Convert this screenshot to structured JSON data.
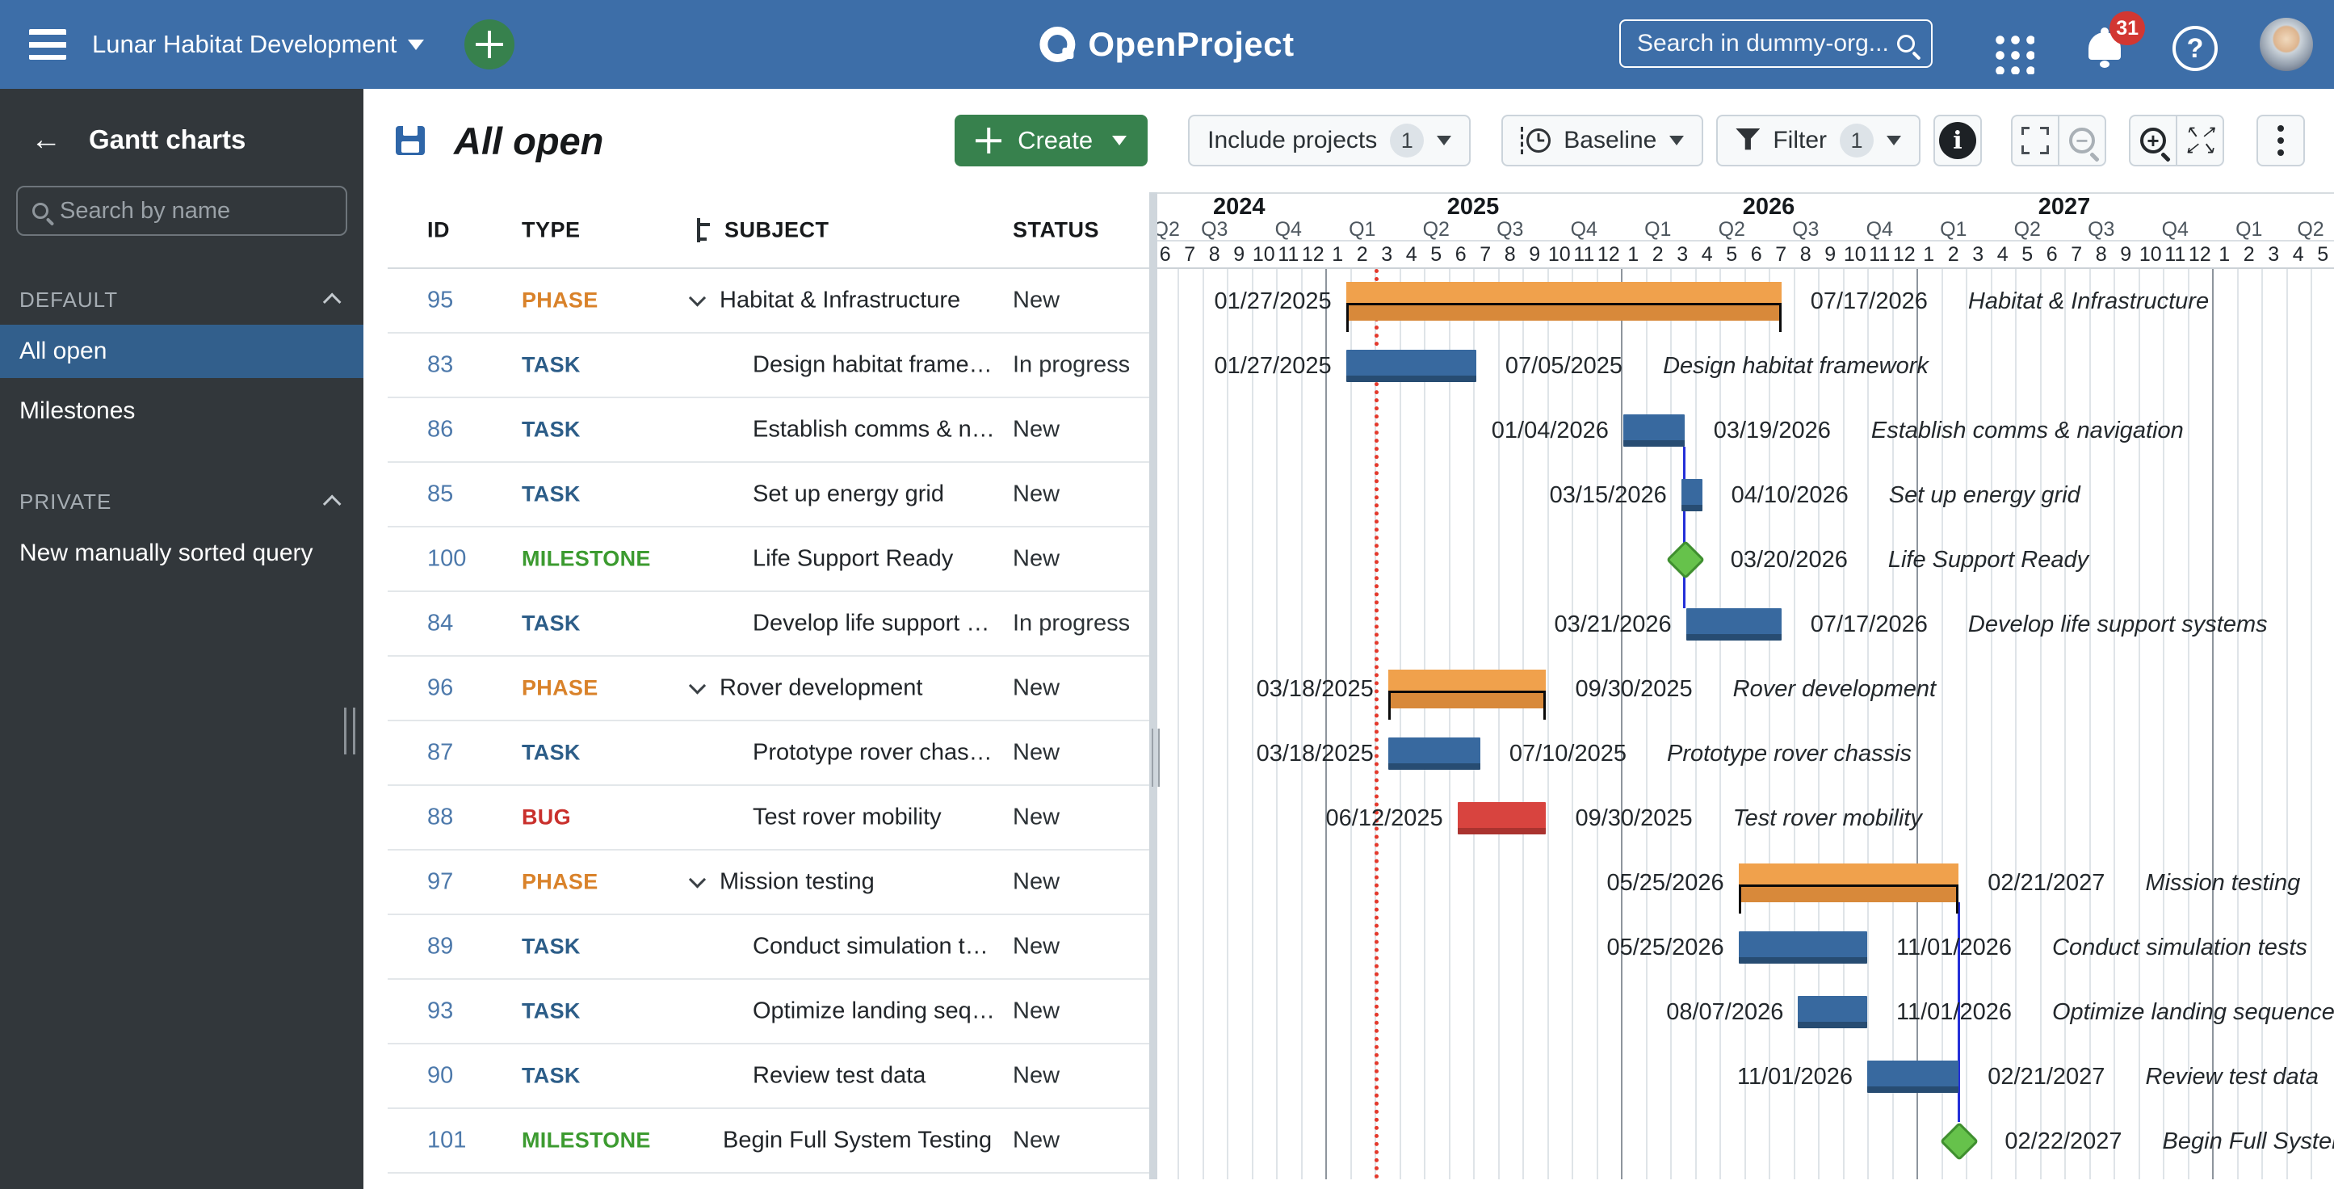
{
  "topbar": {
    "project": "Lunar Habitat Development",
    "logo_text": "OpenProject",
    "search_placeholder": "Search in dummy-org...",
    "notification_count": "31"
  },
  "sidebar": {
    "title": "Gantt charts",
    "search_placeholder": "Search by name",
    "sections": [
      {
        "label": "DEFAULT",
        "items": [
          {
            "label": "All open",
            "selected": true
          },
          {
            "label": "Milestones",
            "selected": false
          }
        ]
      },
      {
        "label": "PRIVATE",
        "items": [
          {
            "label": "New manually sorted query",
            "selected": false
          }
        ]
      }
    ]
  },
  "toolbar": {
    "title": "All open",
    "create_label": "Create",
    "include_projects_label": "Include projects",
    "include_projects_count": "1",
    "baseline_label": "Baseline",
    "filter_label": "Filter",
    "filter_count": "1"
  },
  "table": {
    "columns": [
      "ID",
      "TYPE",
      "SUBJECT",
      "STATUS"
    ]
  },
  "colors": {
    "type": {
      "PHASE": "#d9822a",
      "TASK": "#2c5d88",
      "BUG": "#c9302c",
      "MILESTONE": "#3c9b30"
    },
    "task_bar": "#38699f",
    "task_bar_dark": "#274c72",
    "bug_bar": "#d8443f",
    "bug_bar_dark": "#aa332f",
    "phase_bar": "#f0a14c",
    "phase_bar_dark": "#d8893a",
    "milestone_fill": "#66c24b",
    "milestone_border": "#3f8f2f",
    "relation_line": "#2430d8",
    "today_line": "#e4392c"
  },
  "gantt": {
    "today_date": "03/01/2025",
    "years": [
      {
        "label": "2024",
        "months": 7
      },
      {
        "label": "2025",
        "months": 12
      },
      {
        "label": "2026",
        "months": 12
      },
      {
        "label": "2027",
        "months": 12
      },
      {
        "label": "",
        "months": 5
      }
    ],
    "quarters": [
      {
        "label": "Q2",
        "months": 1
      },
      {
        "label": "Q3",
        "months": 3
      },
      {
        "label": "Q4",
        "months": 3
      },
      {
        "label": "Q1",
        "months": 3
      },
      {
        "label": "Q2",
        "months": 3
      },
      {
        "label": "Q3",
        "months": 3
      },
      {
        "label": "Q4",
        "months": 3
      },
      {
        "label": "Q1",
        "months": 3
      },
      {
        "label": "Q2",
        "months": 3
      },
      {
        "label": "Q3",
        "months": 3
      },
      {
        "label": "Q4",
        "months": 3
      },
      {
        "label": "Q1",
        "months": 3
      },
      {
        "label": "Q2",
        "months": 3
      },
      {
        "label": "Q3",
        "months": 3
      },
      {
        "label": "Q4",
        "months": 3
      },
      {
        "label": "Q1",
        "months": 3
      },
      {
        "label": "Q2",
        "months": 2
      }
    ],
    "months": [
      "6",
      "7",
      "8",
      "9",
      "10",
      "11",
      "12",
      "1",
      "2",
      "3",
      "4",
      "5",
      "6",
      "7",
      "8",
      "9",
      "10",
      "11",
      "12",
      "1",
      "2",
      "3",
      "4",
      "5",
      "6",
      "7",
      "8",
      "9",
      "10",
      "11",
      "12",
      "1",
      "2",
      "3",
      "4",
      "5",
      "6",
      "7",
      "8",
      "9",
      "10",
      "11",
      "12",
      "1",
      "2",
      "3",
      "4",
      "5"
    ],
    "relations": [
      {
        "at": "03/19/2026",
        "from": 2,
        "to": 5
      },
      {
        "at": "02/21/2027",
        "from": 9,
        "to": 13
      }
    ]
  },
  "rows": [
    {
      "id": "95",
      "type": "PHASE",
      "subject": "Habitat & Infrastructure",
      "status": "New",
      "kind": "phase",
      "expandable": true,
      "indent": "phase",
      "start": "01/27/2025",
      "end": "07/17/2026",
      "label": "Habitat & Infrastructure"
    },
    {
      "id": "83",
      "type": "TASK",
      "subject": "Design habitat frame…",
      "status": "In progress",
      "kind": "task",
      "expandable": false,
      "indent": "child",
      "start": "01/27/2025",
      "end": "07/05/2025",
      "label": "Design habitat framework"
    },
    {
      "id": "86",
      "type": "TASK",
      "subject": "Establish comms & n…",
      "status": "New",
      "kind": "task",
      "expandable": false,
      "indent": "child",
      "start": "01/04/2026",
      "end": "03/19/2026",
      "label": "Establish comms & navigation"
    },
    {
      "id": "85",
      "type": "TASK",
      "subject": "Set up energy grid",
      "status": "New",
      "kind": "task",
      "expandable": false,
      "indent": "child",
      "start": "03/15/2026",
      "end": "04/10/2026",
      "label": "Set up energy grid"
    },
    {
      "id": "100",
      "type": "MILESTONE",
      "subject": "Life Support Ready",
      "status": "New",
      "kind": "milestone",
      "expandable": false,
      "indent": "child",
      "date": "03/20/2026",
      "label": "Life Support Ready"
    },
    {
      "id": "84",
      "type": "TASK",
      "subject": "Develop life support …",
      "status": "In progress",
      "kind": "task",
      "expandable": false,
      "indent": "child",
      "start": "03/21/2026",
      "end": "07/17/2026",
      "label": "Develop life support systems"
    },
    {
      "id": "96",
      "type": "PHASE",
      "subject": "Rover development",
      "status": "New",
      "kind": "phase",
      "expandable": true,
      "indent": "phase",
      "start": "03/18/2025",
      "end": "09/30/2025",
      "label": "Rover development"
    },
    {
      "id": "87",
      "type": "TASK",
      "subject": "Prototype rover chas…",
      "status": "New",
      "kind": "task",
      "expandable": false,
      "indent": "child",
      "start": "03/18/2025",
      "end": "07/10/2025",
      "label": "Prototype rover chassis"
    },
    {
      "id": "88",
      "type": "BUG",
      "subject": "Test rover mobility",
      "status": "New",
      "kind": "bug",
      "expandable": false,
      "indent": "child",
      "start": "06/12/2025",
      "end": "09/30/2025",
      "label": "Test rover mobility"
    },
    {
      "id": "97",
      "type": "PHASE",
      "subject": "Mission testing",
      "status": "New",
      "kind": "phase",
      "expandable": true,
      "indent": "phase",
      "start": "05/25/2026",
      "end": "02/21/2027",
      "label": "Mission testing"
    },
    {
      "id": "89",
      "type": "TASK",
      "subject": "Conduct simulation t…",
      "status": "New",
      "kind": "task",
      "expandable": false,
      "indent": "child",
      "start": "05/25/2026",
      "end": "11/01/2026",
      "label": "Conduct simulation tests"
    },
    {
      "id": "93",
      "type": "TASK",
      "subject": "Optimize landing seq…",
      "status": "New",
      "kind": "task",
      "expandable": false,
      "indent": "child",
      "start": "08/07/2026",
      "end": "11/01/2026",
      "label": "Optimize landing sequence"
    },
    {
      "id": "90",
      "type": "TASK",
      "subject": "Review test data",
      "status": "New",
      "kind": "task",
      "expandable": false,
      "indent": "child",
      "start": "11/01/2026",
      "end": "02/21/2027",
      "label": "Review test data"
    },
    {
      "id": "101",
      "type": "MILESTONE",
      "subject": "Begin Full System Testing",
      "status": "New",
      "kind": "milestone",
      "expandable": false,
      "indent": "top",
      "date": "02/22/2027",
      "label": "Begin Full System Testing"
    }
  ]
}
